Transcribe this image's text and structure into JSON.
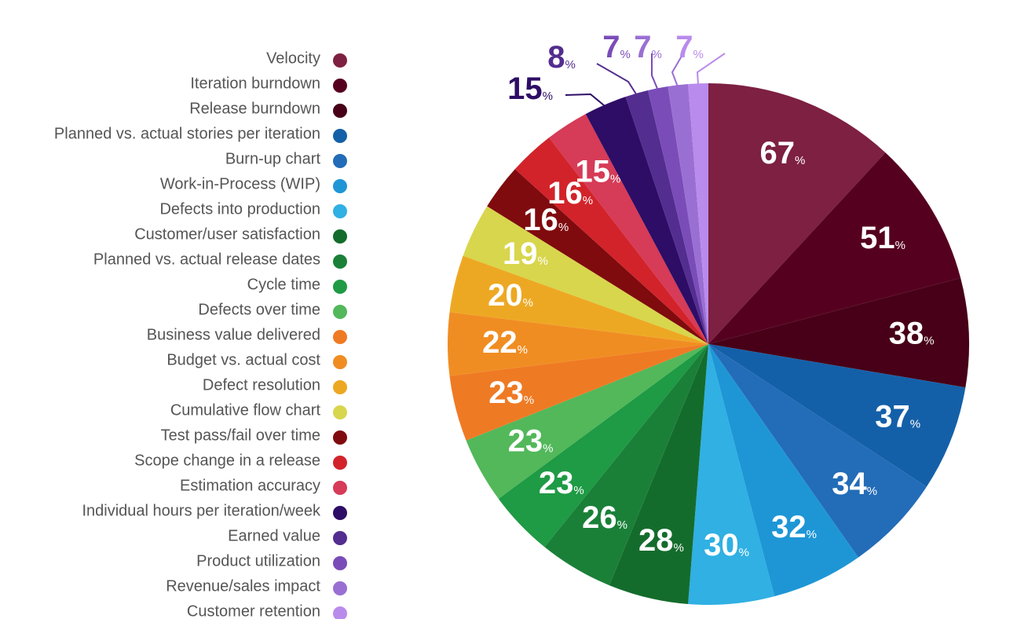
{
  "chart_data": {
    "type": "pie",
    "categories": [
      "Velocity",
      "Iteration burndown",
      "Release burndown",
      "Planned vs. actual stories per iteration",
      "Burn-up chart",
      "Work-in-Process (WIP)",
      "Defects into production",
      "Customer/user satisfaction",
      "Planned vs. actual release dates",
      "Cycle time",
      "Defects over time",
      "Business value delivered",
      "Budget vs. actual cost",
      "Defect resolution",
      "Cumulative flow chart",
      "Test pass/fail over time",
      "Scope change in a release",
      "Estimation accuracy",
      "Individual hours per iteration/week",
      "Earned value",
      "Product utilization",
      "Revenue/sales impact",
      "Customer retention"
    ],
    "values": [
      67,
      51,
      38,
      37,
      34,
      32,
      30,
      28,
      26,
      23,
      23,
      23,
      22,
      20,
      19,
      16,
      16,
      15,
      15,
      8,
      7,
      7,
      7
    ],
    "value_labels": [
      "67%",
      "51%",
      "38%",
      "37%",
      "34%",
      "32%",
      "30%",
      "28%",
      "26%",
      "23%",
      "23%",
      "23%",
      "22%",
      "20%",
      "19%",
      "16%",
      "16%",
      "15%",
      "15%",
      "8%",
      "7%",
      "7%",
      "7%"
    ],
    "colors": [
      "#7d2042",
      "#560020",
      "#470017",
      "#1460a8",
      "#236cb8",
      "#1e96d6",
      "#30b0e3",
      "#146c2c",
      "#1a8038",
      "#1f9a45",
      "#52b85a",
      "#ef7a24",
      "#f08d22",
      "#eda823",
      "#d8d64c",
      "#7f0b0e",
      "#d2232a",
      "#d63b57",
      "#2e0d66",
      "#532d8f",
      "#7a4cb8",
      "#9a6fd3",
      "#b98bec"
    ],
    "legend": "left"
  }
}
